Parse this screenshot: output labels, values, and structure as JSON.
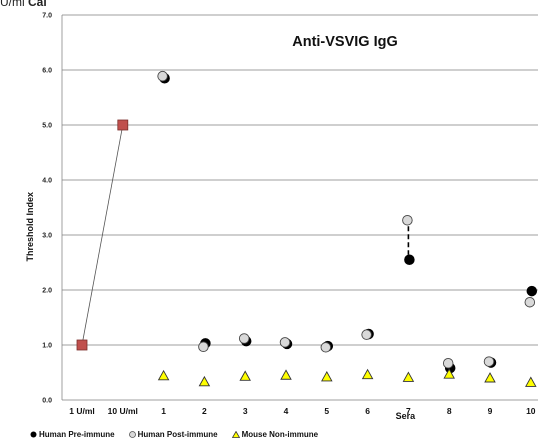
{
  "header_text": {
    "prefix": "U/ml ",
    "bold": "Cal"
  },
  "chart_data": {
    "type": "scatter",
    "title": "Anti-VSVIG IgG",
    "xlabel": "Sera",
    "ylabel": "Threshold Index",
    "ylim": [
      0,
      7
    ],
    "yticks": [
      "0.0",
      "1.0",
      "2.0",
      "3.0",
      "4.0",
      "5.0",
      "6.0",
      "7.0"
    ],
    "categories": [
      "1 U/ml",
      "10 U/ml",
      "1",
      "2",
      "3",
      "4",
      "5",
      "6",
      "7",
      "8",
      "9",
      "10"
    ],
    "grid": true,
    "legend_position": "bottom",
    "calibrator": {
      "values": [
        1.0,
        5.0
      ],
      "color": "#c0504d"
    },
    "series": [
      {
        "name": "Human Pre-immune",
        "marker": "circle-black",
        "color": "#000000",
        "values": [
          null,
          null,
          5.85,
          1.03,
          1.07,
          1.02,
          0.98,
          1.2,
          2.55,
          0.58,
          0.68,
          1.98
        ]
      },
      {
        "name": "Human Post-immune",
        "marker": "circle-gray",
        "color": "#d9d9d9",
        "values": [
          null,
          null,
          5.87,
          0.95,
          1.1,
          1.03,
          0.94,
          1.17,
          3.25,
          0.65,
          0.68,
          1.76
        ]
      },
      {
        "name": "Mouse Non-immune",
        "marker": "triangle-yellow",
        "color": "#ffff00",
        "values": [
          null,
          null,
          0.44,
          0.33,
          0.43,
          0.45,
          0.42,
          0.46,
          0.41,
          0.47,
          0.4,
          0.32
        ]
      }
    ]
  }
}
